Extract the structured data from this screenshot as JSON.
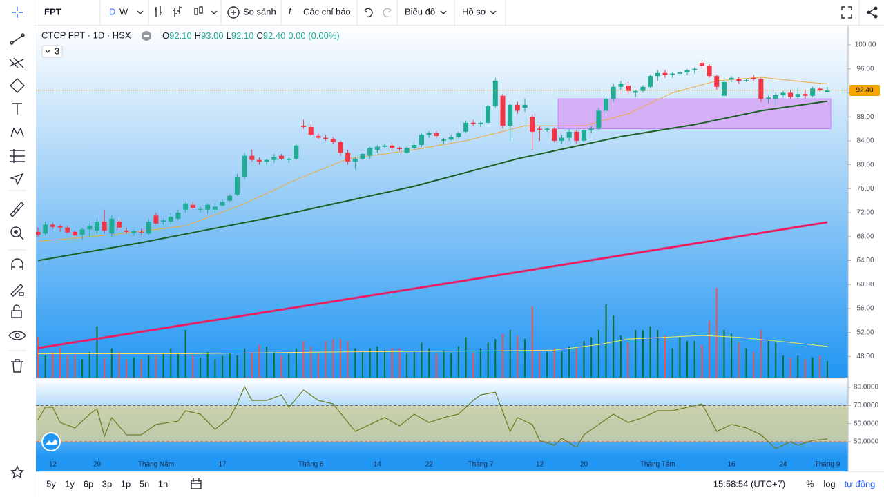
{
  "toolbar": {
    "symbol": "FPT",
    "intervals": [
      "D",
      "W"
    ],
    "compare": "So sánh",
    "indicators": "Các chỉ báo",
    "chart_menu": "Biểu đồ",
    "profile": "Hồ sơ"
  },
  "legend": {
    "title": "CTCP FPT · 1D · HSX",
    "ohlc": [
      {
        "key": "O",
        "value": "92.10"
      },
      {
        "key": "H",
        "value": "93.00"
      },
      {
        "key": "L",
        "value": "92.10"
      },
      {
        "key": "C",
        "value": "92.40"
      }
    ],
    "change": "0.00 (0.00%)",
    "collapsed_count": "3"
  },
  "chart_data": {
    "type": "candlestick",
    "up_color": "#22ab94",
    "down_color": "#f23645",
    "volume_up_color": "#0c6e36",
    "volume_down_color": "#f0524f",
    "ylim": [
      44.47,
      103.23
    ],
    "yticks": [
      {
        "value": 100,
        "label": "100.00"
      },
      {
        "value": 96,
        "label": "96.00"
      },
      {
        "value": 92,
        "label": "92.00"
      },
      {
        "value": 88,
        "label": "88.00"
      },
      {
        "value": 84,
        "label": "84.00"
      },
      {
        "value": 80,
        "label": "80.00"
      },
      {
        "value": 76,
        "label": "76.00"
      },
      {
        "value": 72,
        "label": "72.00"
      },
      {
        "value": 68,
        "label": "68.00"
      },
      {
        "value": 64,
        "label": "64.00"
      },
      {
        "value": 60,
        "label": "60.00"
      },
      {
        "value": 56,
        "label": "56.00"
      },
      {
        "value": 52,
        "label": "52.00"
      },
      {
        "value": 48,
        "label": "48.00"
      }
    ],
    "candles": [
      [
        68.8,
        69.5,
        68,
        68.3
      ],
      [
        68.5,
        70.5,
        68.2,
        70
      ],
      [
        70,
        70.3,
        69.3,
        69.6
      ],
      [
        69.7,
        70,
        68.8,
        69.5
      ],
      [
        69.5,
        69.8,
        68.5,
        68.7
      ],
      [
        68.8,
        69,
        67.8,
        68.2
      ],
      [
        68.3,
        69.5,
        67.5,
        69.2
      ],
      [
        69.2,
        70.2,
        68,
        69.8
      ],
      [
        69,
        71,
        68.5,
        70.5
      ],
      [
        70.5,
        72.5,
        68.5,
        69
      ],
      [
        68.5,
        71.5,
        68,
        71
      ],
      [
        70.5,
        71,
        69,
        69.5
      ],
      [
        69,
        69.5,
        68.5,
        68.8
      ],
      [
        68.6,
        69.2,
        68.2,
        68.9
      ],
      [
        68.8,
        69.3,
        68.3,
        68.7
      ],
      [
        68.5,
        71,
        68.3,
        70.5
      ],
      [
        71.5,
        72,
        70,
        70.2
      ],
      [
        70.5,
        71,
        70,
        70.7
      ],
      [
        70.5,
        72,
        70,
        71.3
      ],
      [
        71,
        72.5,
        70.8,
        72
      ],
      [
        72.5,
        73.8,
        72,
        73.5
      ],
      [
        73.3,
        73.8,
        72.5,
        72.8
      ],
      [
        72.5,
        73,
        72,
        72.6
      ],
      [
        72.5,
        73.5,
        71.8,
        73.3
      ],
      [
        72.5,
        73.5,
        72,
        73
      ],
      [
        73.2,
        74.2,
        73,
        73.8
      ],
      [
        74,
        75,
        73.8,
        74.8
      ],
      [
        75,
        78.5,
        74.8,
        78
      ],
      [
        78,
        82,
        77.5,
        81.5
      ],
      [
        81.5,
        82.5,
        80.5,
        80.8
      ],
      [
        80.8,
        81.2,
        80,
        80.5
      ],
      [
        80.5,
        81,
        80,
        80.8
      ],
      [
        80.8,
        81.8,
        80.3,
        81.3
      ],
      [
        81.5,
        81.8,
        80.8,
        81
      ],
      [
        80.8,
        81.2,
        80.3,
        81
      ],
      [
        81,
        83.5,
        80.8,
        83.2
      ],
      [
        86.5,
        87.5,
        86,
        86.3
      ],
      [
        86.3,
        86.8,
        84.8,
        85
      ],
      [
        84.8,
        85.2,
        84.3,
        84.5
      ],
      [
        84.5,
        85,
        84,
        84.3
      ],
      [
        84.3,
        84.6,
        83.5,
        83.8
      ],
      [
        83.8,
        84,
        81.5,
        82
      ],
      [
        82,
        82.5,
        80,
        80.5
      ],
      [
        80.5,
        81.3,
        79.3,
        81
      ],
      [
        81,
        82,
        80.8,
        81.8
      ],
      [
        81.5,
        83,
        81,
        82.8
      ],
      [
        82.5,
        83.3,
        82,
        83
      ],
      [
        83,
        83.5,
        82.8,
        83.2
      ],
      [
        83.2,
        83.6,
        82.3,
        82.8
      ],
      [
        82.8,
        83,
        82.3,
        82.6
      ],
      [
        82,
        83,
        81.8,
        82.8
      ],
      [
        82.8,
        83.6,
        82.5,
        83.3
      ],
      [
        83.3,
        85.3,
        83,
        85
      ],
      [
        85,
        85.6,
        84.5,
        85.3
      ],
      [
        85.3,
        85.6,
        84.5,
        84.8
      ],
      [
        84,
        84.5,
        83.5,
        84.2
      ],
      [
        84.2,
        85,
        84,
        84.6
      ],
      [
        84.6,
        85.5,
        84.4,
        85.3
      ],
      [
        85.5,
        87.3,
        85.3,
        87
      ],
      [
        87,
        87.5,
        86.5,
        86.8
      ],
      [
        86.8,
        87.2,
        86.3,
        87
      ],
      [
        87,
        90,
        86.8,
        89.8
      ],
      [
        89.8,
        94.5,
        89.5,
        94
      ],
      [
        91.5,
        91.8,
        86,
        86.5
      ],
      [
        86.5,
        90.2,
        84,
        90
      ],
      [
        90,
        90.5,
        88.5,
        89
      ],
      [
        89.5,
        91,
        88.8,
        90
      ],
      [
        88,
        88.5,
        82.5,
        85.5
      ],
      [
        86,
        86.5,
        84,
        85.8
      ],
      [
        85.8,
        86.2,
        85.5,
        86
      ],
      [
        86,
        86.2,
        83.8,
        84
      ],
      [
        84,
        85,
        83.5,
        84.5
      ],
      [
        84.5,
        86,
        84,
        85.5
      ],
      [
        85.5,
        85.8,
        83.5,
        84
      ],
      [
        84,
        86,
        83.8,
        85.8
      ],
      [
        85.8,
        86.5,
        85.3,
        86
      ],
      [
        86,
        89.5,
        85.8,
        89
      ],
      [
        89,
        91.5,
        88.5,
        91
      ],
      [
        91,
        93.5,
        90.5,
        93
      ],
      [
        93,
        94,
        92.5,
        93.5
      ],
      [
        93.2,
        93.8,
        91.8,
        92.3
      ],
      [
        92,
        92.5,
        91.3,
        92.3
      ],
      [
        92.3,
        93.3,
        92,
        93
      ],
      [
        93,
        95,
        92.8,
        94.8
      ],
      [
        94.8,
        95.8,
        94,
        95.3
      ],
      [
        95.3,
        95.8,
        94.5,
        95
      ],
      [
        95,
        95.5,
        94.5,
        95.2
      ],
      [
        95.2,
        95.6,
        94.8,
        95.4
      ],
      [
        95.4,
        96,
        95,
        95.8
      ],
      [
        95.8,
        96.2,
        95.2,
        96
      ],
      [
        97,
        97.5,
        96,
        96.5
      ],
      [
        96.5,
        96.8,
        94.5,
        94.8
      ],
      [
        94.8,
        95,
        92.5,
        93
      ],
      [
        91.5,
        94,
        91.3,
        93.8
      ],
      [
        94.2,
        94.8,
        93.8,
        94.5
      ],
      [
        94.3,
        94.6,
        93.5,
        94
      ],
      [
        94,
        94.3,
        93.8,
        94.1
      ],
      [
        94.5,
        95,
        94,
        94.3
      ],
      [
        94.3,
        94.5,
        90.5,
        91
      ],
      [
        91,
        91.5,
        90.2,
        91.2
      ],
      [
        91,
        92,
        90,
        91.6
      ],
      [
        91.6,
        92.3,
        91.2,
        92
      ],
      [
        92,
        92.5,
        91,
        91.3
      ],
      [
        91.3,
        92.8,
        91,
        91.8
      ],
      [
        91.8,
        92.5,
        91,
        91.5
      ],
      [
        91.5,
        93,
        91.3,
        92.7
      ],
      [
        92.7,
        93,
        92.2,
        92.4
      ],
      [
        92.1,
        93,
        92.1,
        92.4
      ]
    ],
    "volumes": [
      2.2,
      1.2,
      1.4,
      1.6,
      1.2,
      1.2,
      1.0,
      1.4,
      2.8,
      1.1,
      1.6,
      1.4,
      1.0,
      1.1,
      1.0,
      1.2,
      1.2,
      1.3,
      1.6,
      1.3,
      2.6,
      1.2,
      1.1,
      1.4,
      1.0,
      1.2,
      1.3,
      1.2,
      1.6,
      1.4,
      1.8,
      1.7,
      1.4,
      1.2,
      1.3,
      1.6,
      2.0,
      1.7,
      1.3,
      2.0,
      2.1,
      2.1,
      2.0,
      1.6,
      1.4,
      1.6,
      1.7,
      1.5,
      1.6,
      1.6,
      1.3,
      1.4,
      1.9,
      1.6,
      1.3,
      1.5,
      1.3,
      1.7,
      2.2,
      1.4,
      1.6,
      1.9,
      2.1,
      2.4,
      2.6,
      2.3,
      2.1,
      3.9,
      1.4,
      1.4,
      1.6,
      1.4,
      1.7,
      1.6,
      2.0,
      2.2,
      2.6,
      4.0,
      3.4,
      2.3,
      1.9,
      2.6,
      2.6,
      2.8,
      2.6,
      2.3,
      1.6,
      2.2,
      2.0,
      2.0,
      1.8,
      3.1,
      4.9,
      2.6,
      2.4,
      1.9,
      1.6,
      1.4,
      2.6,
      2.0,
      1.9,
      1.2,
      1.1,
      1.2,
      1.0,
      1.1,
      1.2,
      0.9
    ],
    "volume_ma": {
      "color": "#f5e663",
      "x": [
        0,
        20,
        40,
        60,
        70,
        76,
        80,
        90,
        95,
        100,
        107
      ],
      "values": [
        1.3,
        1.3,
        1.4,
        1.45,
        1.5,
        1.8,
        2.1,
        2.3,
        2.2,
        2.0,
        1.7
      ]
    },
    "ma": [
      {
        "color": "#f0a93b",
        "width": 1,
        "x": [
          0,
          10,
          20,
          28,
          35,
          42,
          50,
          58,
          66,
          74,
          80,
          86,
          92,
          98,
          104,
          107
        ],
        "values": [
          67.2,
          68.3,
          69.8,
          73.5,
          77.5,
          81,
          82.3,
          84,
          86.5,
          86.5,
          88.5,
          92,
          94,
          94.6,
          93.8,
          93.5
        ]
      },
      {
        "color": "#1b5e20",
        "width": 2,
        "x": [
          0,
          14,
          32,
          51,
          65,
          79,
          89,
          98,
          107
        ],
        "values": [
          64,
          67,
          71.3,
          76.4,
          81,
          84.7,
          86.7,
          89,
          90.6
        ]
      },
      {
        "color": "#e91e63",
        "width": 3,
        "x": [
          0,
          54,
          107
        ],
        "values": [
          49.4,
          59.9,
          70.4
        ]
      }
    ],
    "zone": {
      "from": 71,
      "top": 91,
      "bottom": 86,
      "color": "#d7a6f5"
    },
    "last_price": {
      "value": 92.4,
      "label": "92.40",
      "color": "#f7a600"
    },
    "x_labels": [
      {
        "index": 2,
        "label": "12"
      },
      {
        "index": 8,
        "label": "20"
      },
      {
        "index": 16,
        "label": "Tháng Năm"
      },
      {
        "index": 25,
        "label": "17"
      },
      {
        "index": 37,
        "label": "Tháng 6"
      },
      {
        "index": 46,
        "label": "14"
      },
      {
        "index": 53,
        "label": "22"
      },
      {
        "index": 60,
        "label": "Tháng 7"
      },
      {
        "index": 68,
        "label": "12"
      },
      {
        "index": 74,
        "label": "20"
      },
      {
        "index": 84,
        "label": "Tháng Tám"
      },
      {
        "index": 94,
        "label": "16"
      },
      {
        "index": 101,
        "label": "24"
      },
      {
        "index": 107,
        "label": "Tháng 9"
      }
    ],
    "rsi": {
      "color": "#6b7a1e",
      "ylim": [
        41.6,
        84.6
      ],
      "band": [
        50,
        70
      ],
      "band_color": "#cfcf9e",
      "yticks": [
        {
          "value": 80,
          "label": "80.0000"
        },
        {
          "value": 70,
          "label": "70.0000"
        },
        {
          "value": 60,
          "label": "60.0000"
        },
        {
          "value": 50,
          "label": "50.0000"
        }
      ],
      "x": [
        0,
        1,
        2,
        3,
        5,
        7,
        8,
        9,
        10,
        12,
        14,
        16,
        19,
        20,
        22,
        24,
        26,
        27,
        28,
        29,
        31,
        33,
        34,
        36,
        38,
        40,
        43,
        45,
        47,
        49,
        51,
        53,
        55,
        57,
        59,
        60,
        62,
        64,
        65,
        67,
        68,
        70,
        71,
        73,
        74,
        76,
        78,
        80,
        82,
        84,
        86,
        88,
        90,
        92,
        94,
        96,
        98,
        100,
        102,
        103,
        105,
        107
      ],
      "values": [
        62.1,
        69,
        69,
        60.6,
        57.6,
        65.2,
        68.2,
        53,
        63.3,
        53.8,
        53.8,
        59.5,
        61.4,
        67.1,
        65.2,
        56.8,
        63.3,
        70.9,
        80.4,
        72.8,
        72.8,
        75.8,
        69,
        78.5,
        72.8,
        70.9,
        55.7,
        59.5,
        63.3,
        58.7,
        65.2,
        60.6,
        63.3,
        65.2,
        72.8,
        75.8,
        77.3,
        55.7,
        63.3,
        59.5,
        50.7,
        48.1,
        51.9,
        46.9,
        53.8,
        59.5,
        65.2,
        60.6,
        63.3,
        67.1,
        67.1,
        69,
        70.9,
        55.7,
        59.5,
        57.6,
        53.8,
        46.2,
        50,
        48.1,
        50.7,
        51.5
      ]
    }
  },
  "bottom_bar": {
    "ranges": [
      "5y",
      "1y",
      "6p",
      "3p",
      "1p",
      "5n",
      "1n"
    ],
    "time": "15:58:54 (UTC+7)",
    "percent": "%",
    "log": "log",
    "auto": "tự động"
  }
}
